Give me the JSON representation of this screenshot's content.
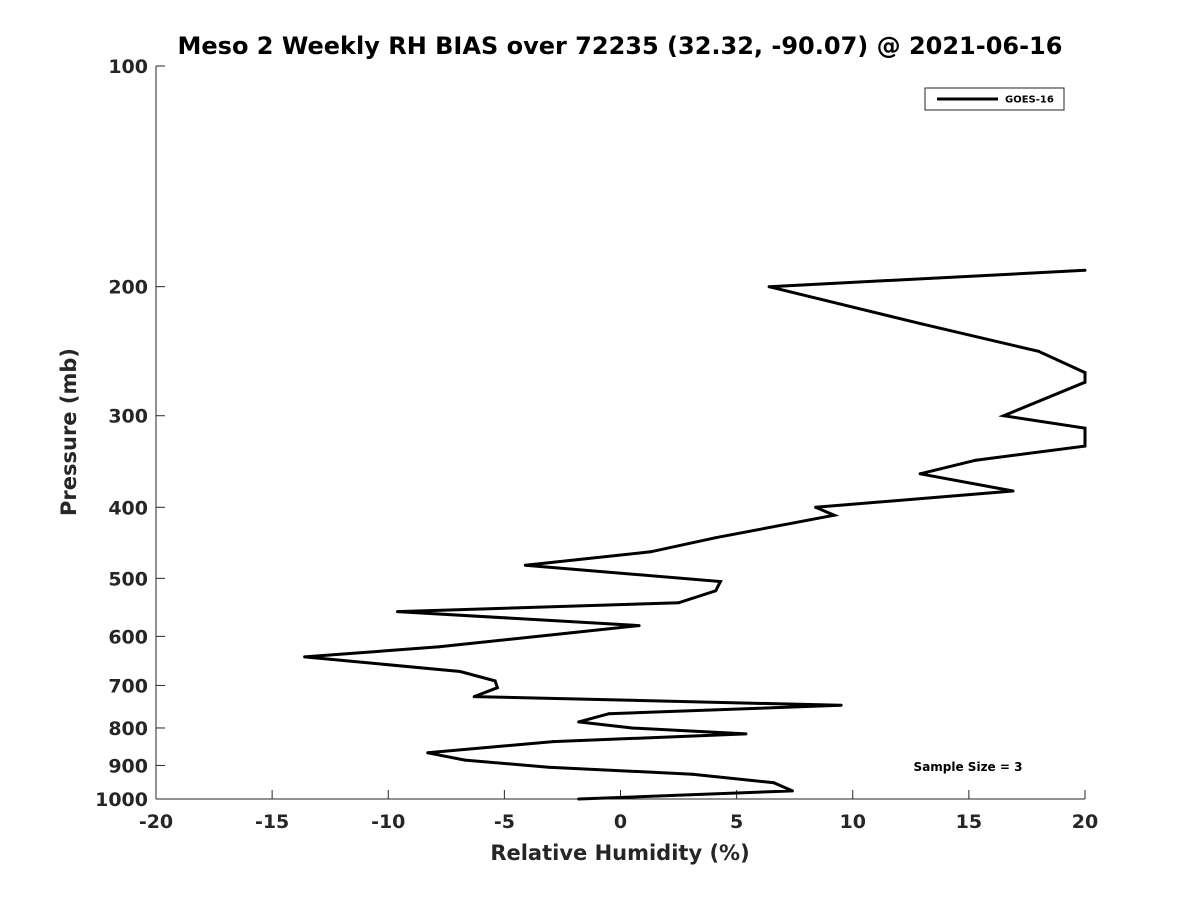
{
  "chart_data": {
    "type": "line",
    "title": "Meso 2 Weekly RH BIAS over 72235 (32.32, -90.07) @ 2021-06-16",
    "xlabel": "Relative Humidity (%)",
    "ylabel": "Pressure (mb)",
    "xlim": [
      -20,
      20
    ],
    "ylim": [
      1000,
      100
    ],
    "yscale": "log",
    "xticks": [
      "-20",
      "-15",
      "-10",
      "-5",
      "0",
      "5",
      "10",
      "15",
      "20"
    ],
    "yticks": [
      "100",
      "200",
      "300",
      "400",
      "500",
      "600",
      "700",
      "800",
      "900",
      "1000"
    ],
    "grid": false,
    "legend_position": "top-right",
    "annotation": "Sample Size = 3",
    "series": [
      {
        "name": "GOES-16",
        "color": "#000000",
        "x": [
          -1.8,
          7.4,
          6.6,
          3.1,
          -3.1,
          -6.7,
          -8.3,
          -2.9,
          5.4,
          0.5,
          -1.8,
          -0.5,
          9.5,
          -6.3,
          -5.3,
          -5.4,
          -6.9,
          -13.6,
          -7.8,
          0.8,
          -9.6,
          2.5,
          4.1,
          4.3,
          -4.1,
          1.3,
          4.1,
          9.2,
          8.4,
          16.9,
          12.9,
          15.3,
          20,
          20,
          16.5,
          20,
          20,
          18,
          13.0,
          6.4,
          20
        ],
        "y": [
          1000,
          975,
          950,
          925,
          905,
          885,
          865,
          835,
          815,
          800,
          785,
          765,
          745,
          725,
          705,
          690,
          670,
          640,
          620,
          580,
          555,
          540,
          520,
          505,
          480,
          460,
          440,
          410,
          400,
          380,
          360,
          345,
          330,
          312,
          300,
          270,
          262,
          245,
          225,
          200,
          190
        ]
      }
    ]
  }
}
